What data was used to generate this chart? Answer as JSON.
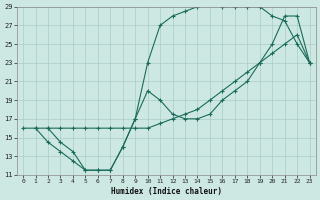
{
  "xlabel": "Humidex (Indice chaleur)",
  "xlim": [
    -0.5,
    23.5
  ],
  "ylim": [
    11,
    29
  ],
  "xticks": [
    0,
    1,
    2,
    3,
    4,
    5,
    6,
    7,
    8,
    9,
    10,
    11,
    12,
    13,
    14,
    15,
    16,
    17,
    18,
    19,
    20,
    21,
    22,
    23
  ],
  "yticks": [
    11,
    13,
    15,
    17,
    19,
    21,
    23,
    25,
    27,
    29
  ],
  "background_color": "#cde8e2",
  "grid_color": "#a8cdc6",
  "line_color": "#1a6b5a",
  "line1_x": [
    0,
    1,
    2,
    3,
    4,
    5,
    6,
    7,
    8,
    9,
    10,
    11,
    12,
    13,
    14,
    15,
    16,
    17,
    18,
    19,
    20,
    21,
    22,
    23
  ],
  "line1_y": [
    16,
    16,
    16,
    16,
    16,
    16,
    16,
    16,
    16,
    16,
    16,
    16.5,
    17,
    17.5,
    18,
    19,
    20,
    21,
    22,
    23,
    24,
    25,
    26,
    23
  ],
  "line2_x": [
    1,
    2,
    3,
    4,
    5,
    6,
    7,
    8,
    9,
    10,
    11,
    12,
    13,
    14,
    15,
    16,
    17,
    18,
    19,
    20,
    21,
    22,
    23
  ],
  "line2_y": [
    16,
    14.5,
    13.5,
    12.5,
    11.5,
    11.5,
    11.5,
    14,
    17,
    20,
    19,
    17.5,
    17,
    17,
    17.5,
    19,
    20,
    21,
    23,
    25,
    28,
    28,
    23
  ],
  "line3_x": [
    2,
    3,
    4,
    5,
    6,
    7,
    8,
    9,
    10,
    11,
    12,
    13,
    14,
    15,
    16,
    17,
    18,
    19,
    20,
    21,
    22,
    23
  ],
  "line3_y": [
    16,
    14.5,
    13.5,
    11.5,
    11.5,
    11.5,
    14,
    17,
    23,
    27,
    28,
    28.5,
    29,
    29.5,
    29,
    29,
    29,
    29,
    28,
    27.5,
    25,
    23
  ]
}
